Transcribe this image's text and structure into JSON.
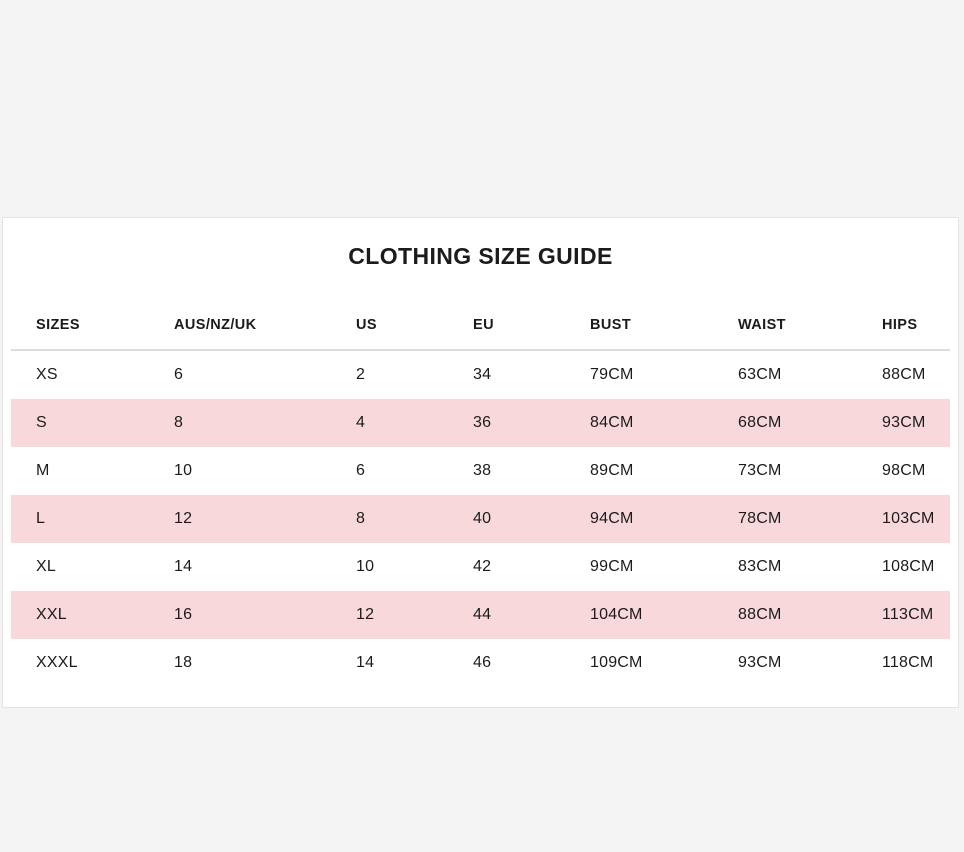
{
  "colors": {
    "page_background": "#f4f4f5",
    "panel_background": "#ffffff",
    "row_highlight": "#f8d8db",
    "text": "#1b1b1d",
    "divider": "#dddddf"
  },
  "size_guide": {
    "title": "CLOTHING SIZE GUIDE",
    "columns": [
      "SIZES",
      "AUS/NZ/UK",
      "US",
      "EU",
      "BUST",
      "WAIST",
      "HIPS"
    ],
    "rows": [
      {
        "cells": [
          "XS",
          "6",
          "2",
          "34",
          "79CM",
          "63CM",
          "88CM"
        ],
        "highlighted": false
      },
      {
        "cells": [
          "S",
          "8",
          "4",
          "36",
          "84CM",
          "68CM",
          "93CM"
        ],
        "highlighted": true
      },
      {
        "cells": [
          "M",
          "10",
          "6",
          "38",
          "89CM",
          "73CM",
          "98CM"
        ],
        "highlighted": false
      },
      {
        "cells": [
          "L",
          "12",
          "8",
          "40",
          "94CM",
          "78CM",
          "103CM"
        ],
        "highlighted": true
      },
      {
        "cells": [
          "XL",
          "14",
          "10",
          "42",
          "99CM",
          "83CM",
          "108CM"
        ],
        "highlighted": false
      },
      {
        "cells": [
          "XXL",
          "16",
          "12",
          "44",
          "104CM",
          "88CM",
          "113CM"
        ],
        "highlighted": true
      },
      {
        "cells": [
          "XXXL",
          "18",
          "14",
          "46",
          "109CM",
          "93CM",
          "118CM"
        ],
        "highlighted": false
      }
    ]
  }
}
